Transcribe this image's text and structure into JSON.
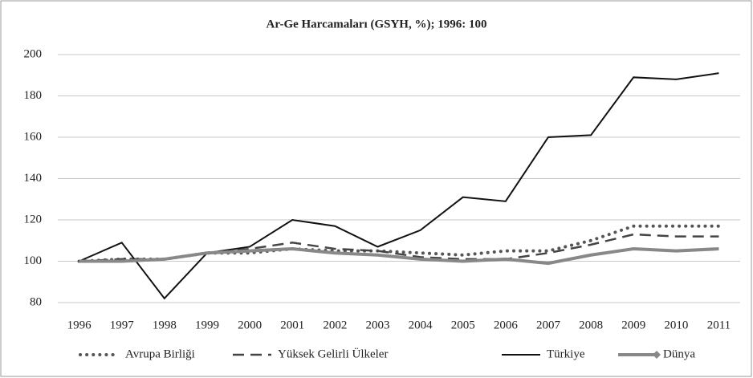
{
  "chart_data": {
    "type": "line",
    "title": "Ar-Ge Harcamaları (GSYH, %); 1996: 100",
    "categories": [
      "1996",
      "1997",
      "1998",
      "1999",
      "2000",
      "2001",
      "2002",
      "2003",
      "2004",
      "2005",
      "2006",
      "2007",
      "2008",
      "2009",
      "2010",
      "2011"
    ],
    "series": [
      {
        "name": "Avrupa Birliği",
        "color": "#555555",
        "style": "dotted",
        "values": [
          100,
          101,
          101,
          104,
          104,
          106,
          105,
          105,
          104,
          103,
          105,
          105,
          110,
          117,
          117,
          117
        ]
      },
      {
        "name": "Yüksek Gelirli Ülkeler",
        "color": "#444444",
        "style": "dashed",
        "values": [
          100,
          101,
          101,
          104,
          106,
          109,
          106,
          105,
          102,
          101,
          101,
          104,
          108,
          113,
          112,
          112
        ]
      },
      {
        "name": "Türkiye",
        "color": "#111111",
        "style": "solid",
        "values": [
          100,
          109,
          82,
          104,
          107,
          120,
          117,
          107,
          115,
          131,
          129,
          160,
          161,
          189,
          188,
          191
        ]
      },
      {
        "name": "Dünya",
        "color": "#888888",
        "style": "thick",
        "marker": "diamond",
        "values": [
          100,
          100,
          101,
          104,
          105,
          106,
          104,
          103,
          101,
          100,
          101,
          99,
          103,
          106,
          105,
          106
        ]
      }
    ],
    "ylim": [
      80,
      200
    ],
    "yticks": [
      80,
      100,
      120,
      140,
      160,
      180,
      200
    ],
    "grid": true,
    "legend": "bottom"
  }
}
